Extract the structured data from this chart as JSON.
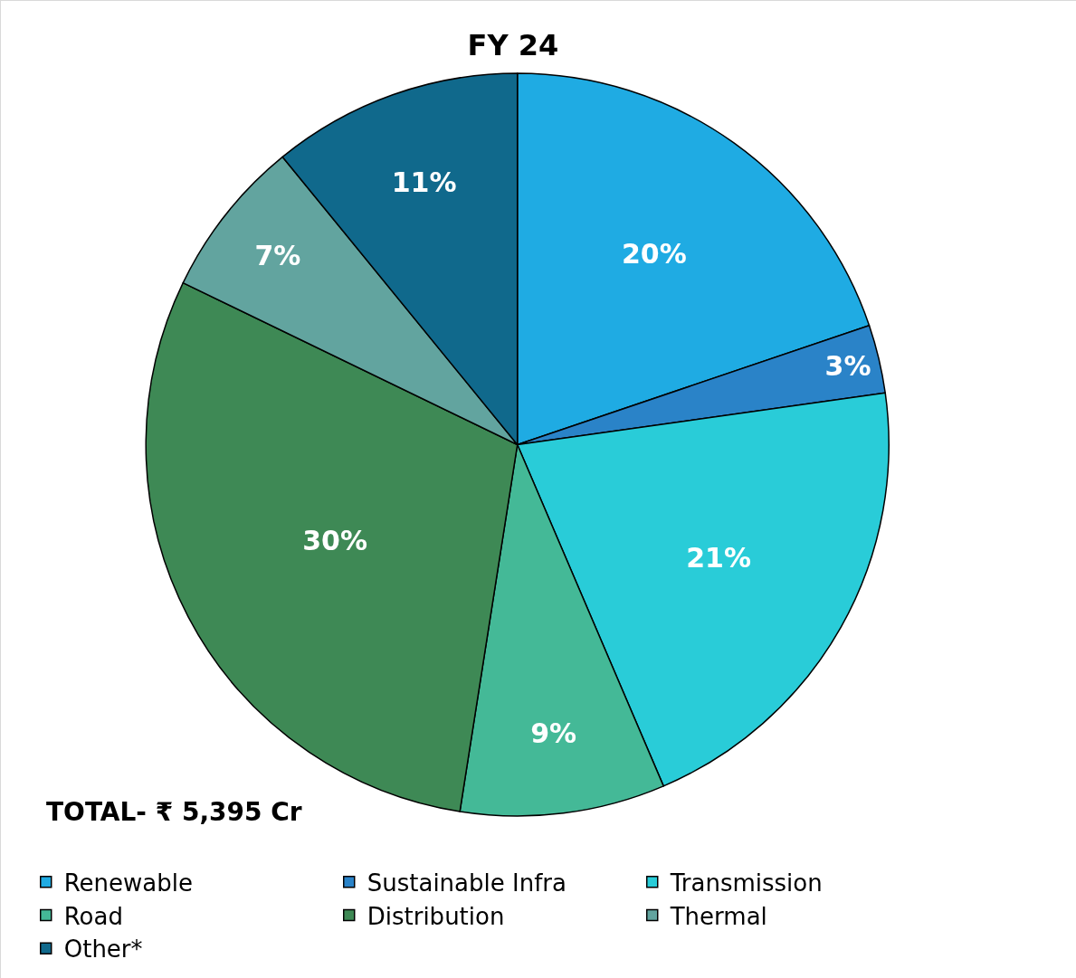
{
  "chart_data": {
    "type": "pie",
    "title": "FY 24",
    "categories": [
      "Renewable",
      "Sustainable Infra",
      "Transmission",
      "Road",
      "Distribution",
      "Thermal",
      "Other*"
    ],
    "values": [
      20,
      3,
      21,
      9,
      30,
      7,
      11
    ],
    "value_labels": [
      "20%",
      "3%",
      "21%",
      "9%",
      "30%",
      "7%",
      "11%"
    ],
    "colors": [
      "#1fabe3",
      "#2a83c8",
      "#29ccd8",
      "#44b997",
      "#3e8955",
      "#62a49f",
      "#10698c"
    ],
    "annotations": [
      "TOTAL- ₹ 5,395 Cr"
    ],
    "legend": "bottom"
  }
}
